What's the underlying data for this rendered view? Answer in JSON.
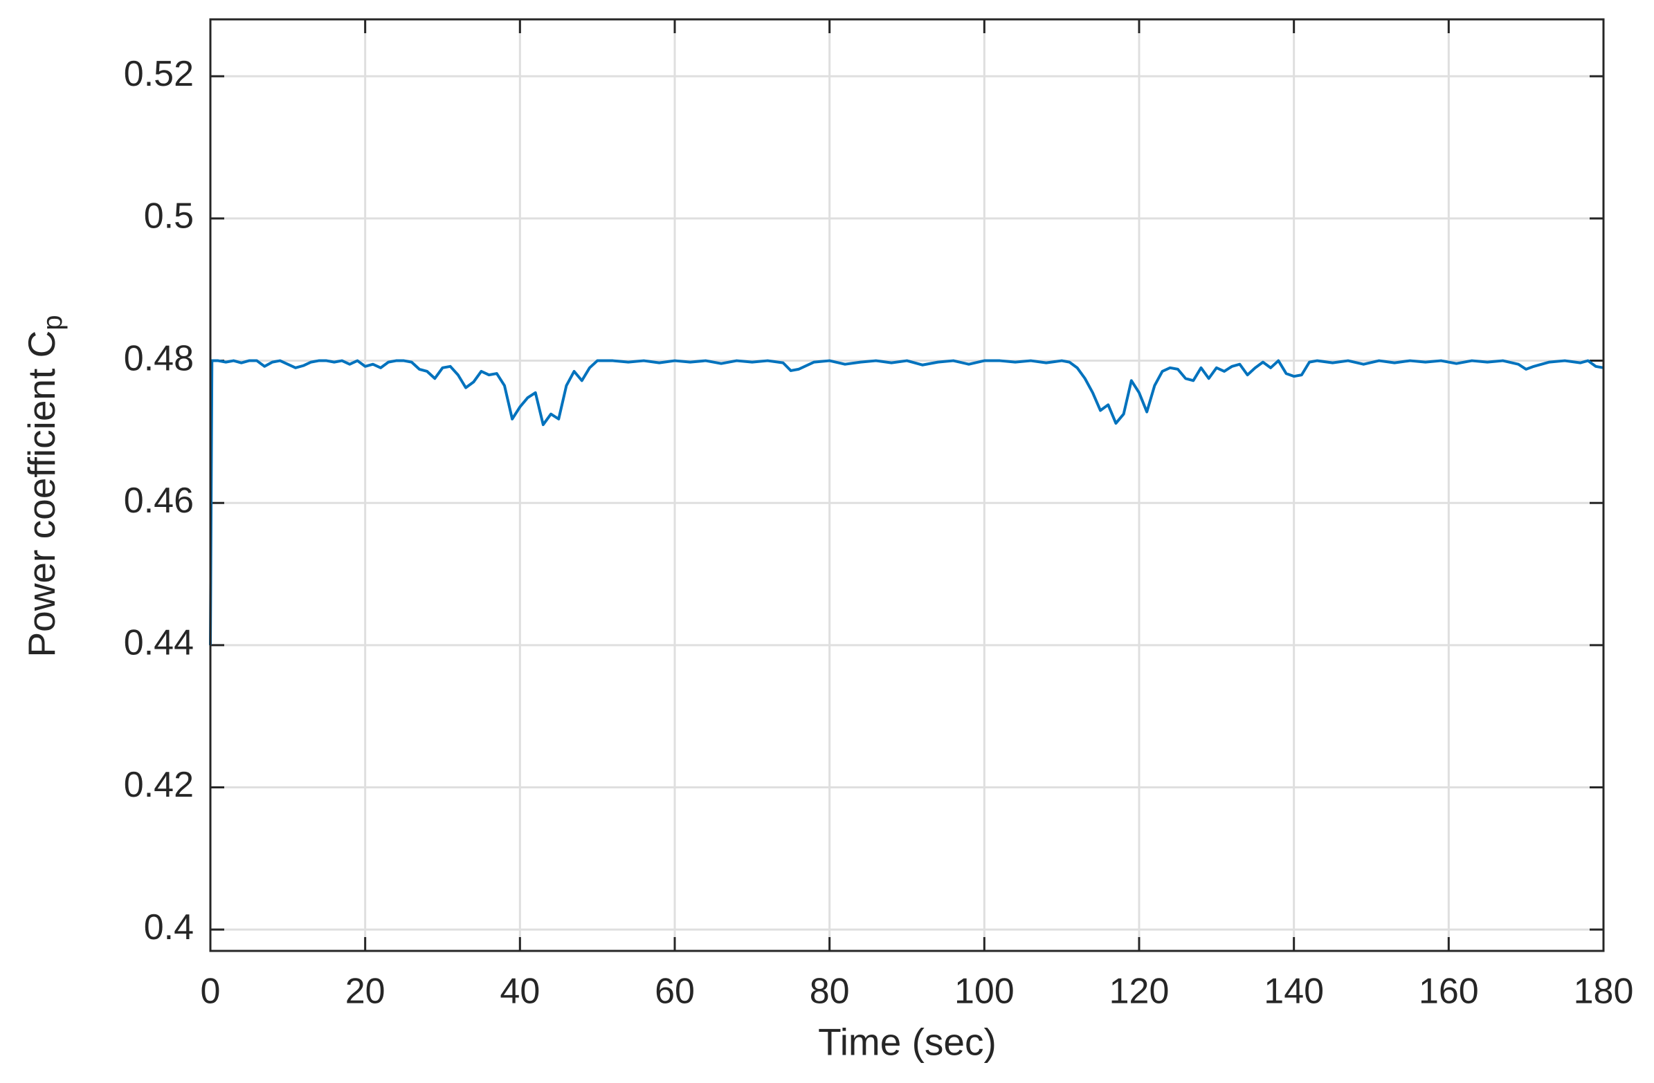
{
  "chart_data": {
    "type": "line",
    "xlabel": "Time (sec)",
    "ylabel": "Power coefficient C",
    "ylabel_subscript": "p",
    "xlim": [
      0,
      180
    ],
    "ylim": [
      0.397,
      0.528
    ],
    "xticks": [
      0,
      20,
      40,
      60,
      80,
      100,
      120,
      140,
      160,
      180
    ],
    "yticks": [
      0.4,
      0.42,
      0.44,
      0.46,
      0.48,
      0.5,
      0.52
    ],
    "grid": true,
    "series": [
      {
        "name": "Cp",
        "color": "#0072bd",
        "x": [
          0,
          0.2,
          1,
          2,
          3,
          4,
          5,
          6,
          7,
          8,
          9,
          10,
          11,
          12,
          13,
          14,
          15,
          16,
          17,
          18,
          19,
          20,
          21,
          22,
          23,
          24,
          25,
          26,
          27,
          28,
          29,
          30,
          31,
          32,
          33,
          34,
          35,
          36,
          37,
          38,
          39,
          40,
          41,
          42,
          43,
          44,
          45,
          46,
          47,
          48,
          49,
          50,
          52,
          54,
          56,
          58,
          60,
          62,
          64,
          66,
          68,
          70,
          72,
          74,
          75,
          76,
          78,
          80,
          82,
          84,
          86,
          88,
          90,
          92,
          94,
          96,
          98,
          100,
          102,
          104,
          106,
          108,
          110,
          111,
          112,
          113,
          114,
          115,
          116,
          117,
          118,
          119,
          120,
          121,
          122,
          123,
          124,
          125,
          126,
          127,
          128,
          129,
          130,
          131,
          132,
          133,
          134,
          135,
          136,
          137,
          138,
          139,
          140,
          141,
          142,
          143,
          145,
          147,
          149,
          151,
          153,
          155,
          157,
          159,
          161,
          163,
          165,
          167,
          169,
          170,
          171,
          173,
          175,
          177,
          178,
          179,
          180
        ],
        "values": [
          0.44,
          0.48,
          0.48,
          0.4798,
          0.48,
          0.4797,
          0.48,
          0.48,
          0.4792,
          0.4798,
          0.48,
          0.4795,
          0.479,
          0.4793,
          0.4798,
          0.48,
          0.48,
          0.4798,
          0.48,
          0.4795,
          0.48,
          0.4792,
          0.4795,
          0.479,
          0.4798,
          0.48,
          0.48,
          0.4798,
          0.4788,
          0.4785,
          0.4775,
          0.479,
          0.4792,
          0.478,
          0.4762,
          0.477,
          0.4785,
          0.478,
          0.4782,
          0.4765,
          0.4718,
          0.4735,
          0.4748,
          0.4755,
          0.471,
          0.4725,
          0.4718,
          0.4765,
          0.4785,
          0.4772,
          0.479,
          0.48,
          0.48,
          0.4798,
          0.48,
          0.4797,
          0.48,
          0.4798,
          0.48,
          0.4796,
          0.48,
          0.4798,
          0.48,
          0.4797,
          0.4786,
          0.4788,
          0.4798,
          0.48,
          0.4795,
          0.4798,
          0.48,
          0.4797,
          0.48,
          0.4794,
          0.4798,
          0.48,
          0.4795,
          0.48,
          0.48,
          0.4798,
          0.48,
          0.4797,
          0.48,
          0.4798,
          0.479,
          0.4775,
          0.4755,
          0.473,
          0.4738,
          0.4712,
          0.4725,
          0.4772,
          0.4755,
          0.4728,
          0.4765,
          0.4785,
          0.479,
          0.4788,
          0.4775,
          0.4772,
          0.479,
          0.4775,
          0.479,
          0.4785,
          0.4792,
          0.4795,
          0.478,
          0.479,
          0.4798,
          0.479,
          0.48,
          0.4782,
          0.4778,
          0.478,
          0.4798,
          0.48,
          0.4797,
          0.48,
          0.4795,
          0.48,
          0.4797,
          0.48,
          0.4798,
          0.48,
          0.4796,
          0.48,
          0.4798,
          0.48,
          0.4795,
          0.4788,
          0.4792,
          0.4798,
          0.48,
          0.4797,
          0.48,
          0.4792,
          0.479
        ]
      }
    ]
  }
}
